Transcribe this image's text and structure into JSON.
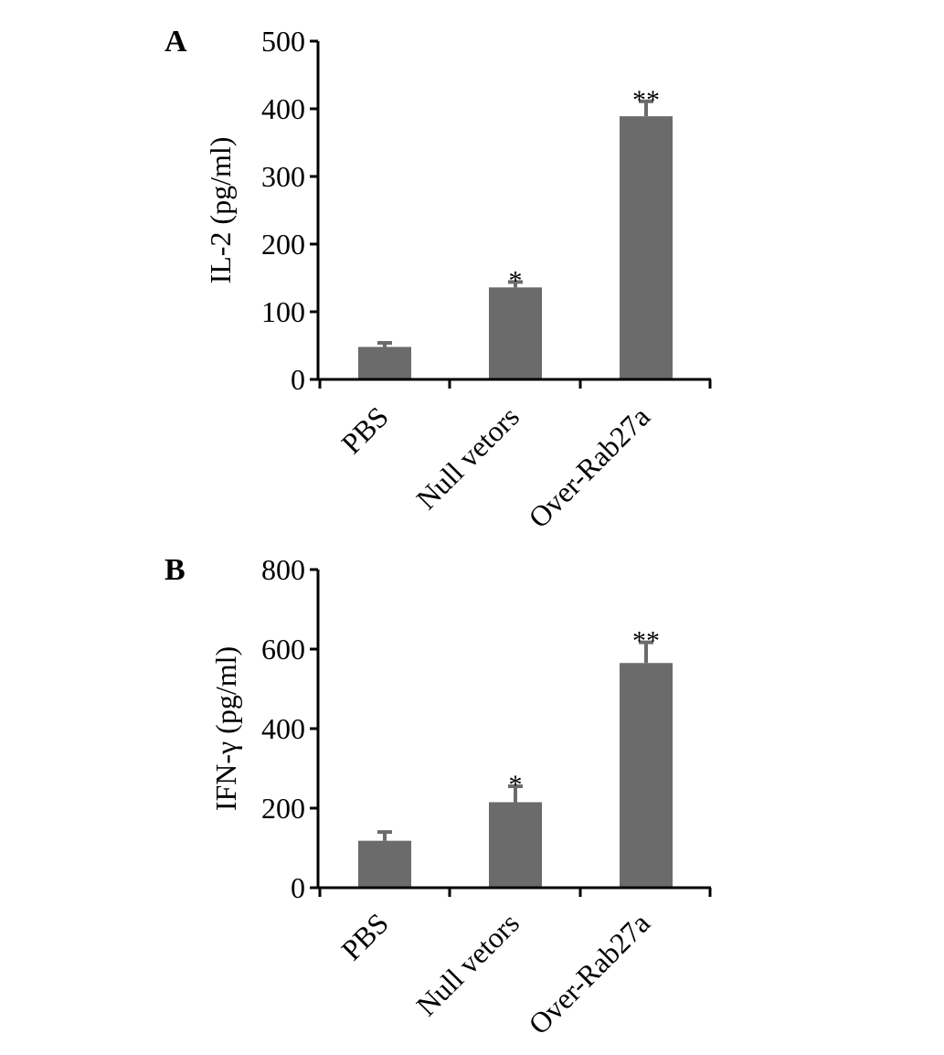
{
  "figure": {
    "bar_color": "#6b6b6b",
    "error_color": "#6b6b6b",
    "axis_color": "#000000"
  },
  "chart_data": [
    {
      "type": "bar",
      "panel_label": "A",
      "ylabel": "IL-2 (pg/ml)",
      "categories": [
        "PBS",
        "Null vetors",
        "Over-Rab27a"
      ],
      "values": [
        48,
        136,
        389
      ],
      "errors": [
        6,
        8,
        22
      ],
      "significance": [
        "",
        "*",
        "**"
      ],
      "ylim": [
        0,
        500
      ],
      "yticks": [
        0,
        100,
        200,
        300,
        400,
        500
      ],
      "grid": false,
      "legend": "none"
    },
    {
      "type": "bar",
      "panel_label": "B",
      "ylabel": "IFN-γ (pg/ml)",
      "categories": [
        "PBS",
        "Null vetors",
        "Over-Rab27a"
      ],
      "values": [
        118,
        215,
        565
      ],
      "errors": [
        22,
        40,
        52
      ],
      "significance": [
        "",
        "*",
        "**"
      ],
      "ylim": [
        0,
        800
      ],
      "yticks": [
        0,
        200,
        400,
        600,
        800
      ],
      "grid": false,
      "legend": "none"
    }
  ]
}
